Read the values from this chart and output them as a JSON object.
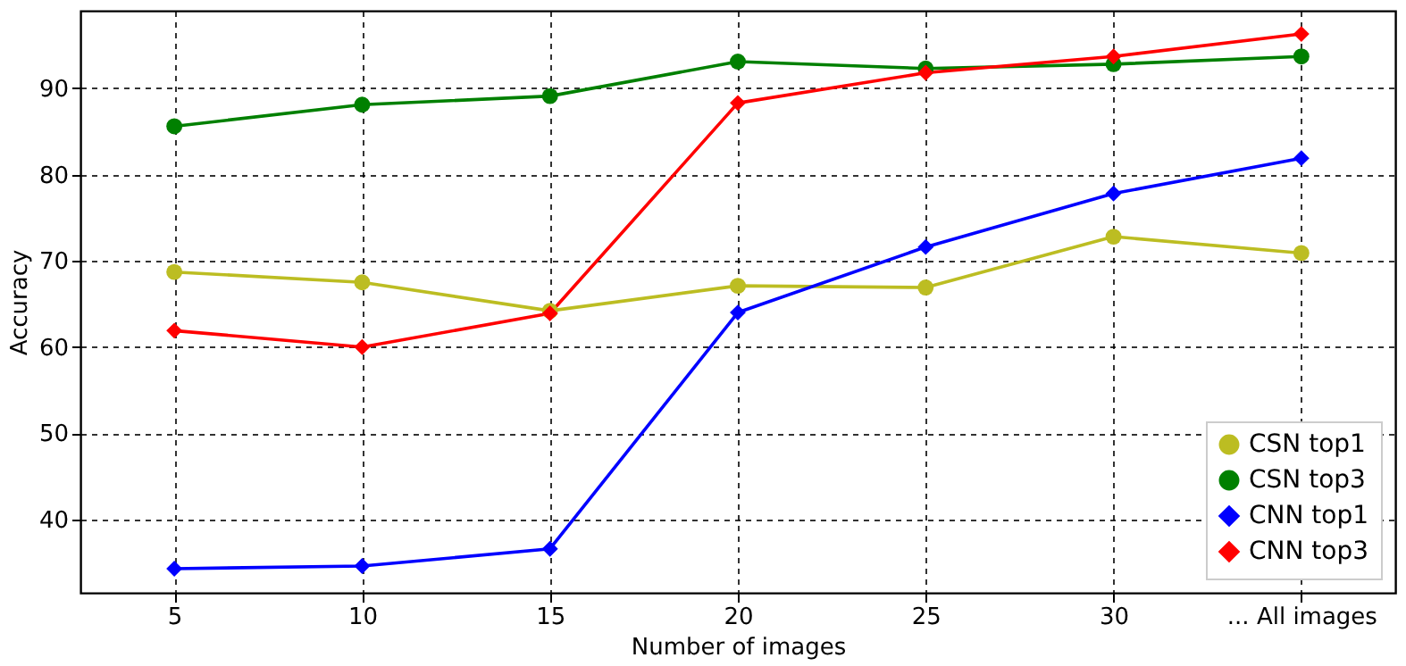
{
  "chart_data": {
    "type": "line",
    "xlabel": "Number of  images",
    "ylabel": "Accuracy",
    "categories": [
      "5",
      "10",
      "15",
      "20",
      "25",
      "30",
      "... All images"
    ],
    "series": [
      {
        "name": "CSN top1",
        "color": "#bcbd22",
        "marker": "circle",
        "values": [
          68.7,
          67.5,
          64.2,
          67.1,
          66.9,
          72.8,
          70.9
        ]
      },
      {
        "name": "CSN top3",
        "color": "#008000",
        "marker": "circle",
        "values": [
          85.6,
          88.1,
          89.1,
          93.1,
          92.3,
          92.8,
          93.7
        ]
      },
      {
        "name": "CNN top1",
        "color": "#0000ff",
        "marker": "diamond",
        "values": [
          34.3,
          34.6,
          36.6,
          64.0,
          71.6,
          77.8,
          81.9
        ]
      },
      {
        "name": "CNN top3",
        "color": "#ff0000",
        "marker": "diamond",
        "values": [
          61.9,
          60.0,
          63.9,
          88.3,
          91.8,
          93.7,
          96.3
        ]
      }
    ],
    "ylim": [
      31.5,
      99
    ],
    "yticks": [
      40,
      50,
      60,
      70,
      80,
      90
    ],
    "grid": true,
    "legend": "bottom right",
    "line_style": "solid"
  }
}
